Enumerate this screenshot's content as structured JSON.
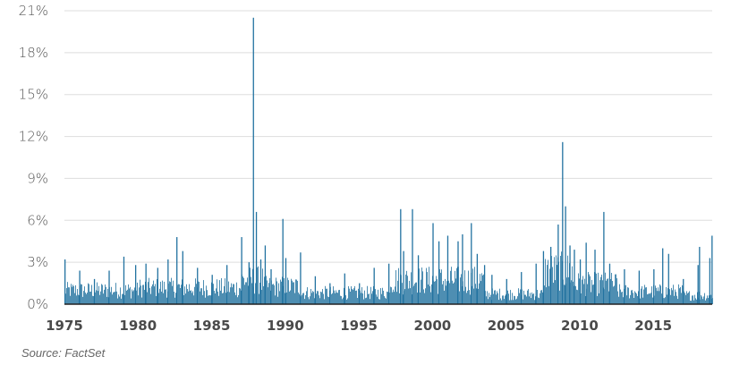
{
  "chart_data": {
    "type": "bar",
    "ylim": [
      0,
      21
    ],
    "xlim": [
      1975,
      2019
    ],
    "y_ticks": [
      "0%",
      "3%",
      "6%",
      "9%",
      "12%",
      "15%",
      "18%",
      "21%"
    ],
    "y_tick_values": [
      0,
      3,
      6,
      9,
      12,
      15,
      18,
      21
    ],
    "x_ticks": [
      "1975",
      "1980",
      "1985",
      "1990",
      "1995",
      "2000",
      "2005",
      "2010",
      "2015"
    ],
    "x_tick_values": [
      1975,
      1980,
      1985,
      1990,
      1995,
      2000,
      2005,
      2010,
      2015
    ],
    "grid": true,
    "bar_color": "#2272a0",
    "gridline_color": "#dddddd",
    "baseline_color": "#222222",
    "series": [
      {
        "x": [
          1975.0,
          1976.0,
          1977.0,
          1978.0,
          1979.0,
          1979.8,
          1980.5,
          1981.3,
          1982.0,
          1982.6,
          1983.0,
          1984.0,
          1985.0,
          1986.0,
          1987.0,
          1987.5,
          1987.8,
          1988.0,
          1988.3,
          1988.6,
          1989.0,
          1989.8,
          1990.0,
          1991.0,
          1992.0,
          1993.0,
          1994.0,
          1995.0,
          1996.0,
          1997.0,
          1997.8,
          1998.0,
          1998.6,
          1999.0,
          2000.0,
          2000.4,
          2001.0,
          2001.7,
          2002.0,
          2002.6,
          2003.0,
          2003.5,
          2004.0,
          2005.0,
          2006.0,
          2007.0,
          2007.5,
          2008.0,
          2008.5,
          2008.8,
          2009.0,
          2009.3,
          2009.6,
          2010.0,
          2010.4,
          2011.0,
          2011.6,
          2012.0,
          2013.0,
          2014.0,
          2015.0,
          2015.6,
          2016.0,
          2017.0,
          2018.0,
          2018.1,
          2018.8,
          2018.95
        ],
        "values": [
          3.2,
          2.4,
          1.8,
          2.4,
          3.4,
          2.8,
          2.9,
          2.6,
          3.2,
          4.8,
          3.8,
          2.6,
          2.1,
          2.8,
          4.8,
          3.0,
          20.5,
          6.6,
          3.2,
          4.2,
          2.5,
          6.1,
          3.3,
          3.7,
          2.0,
          1.5,
          2.2,
          1.5,
          2.6,
          2.9,
          6.8,
          3.8,
          6.8,
          3.5,
          5.8,
          4.5,
          4.9,
          4.5,
          5.0,
          5.8,
          3.6,
          2.8,
          2.1,
          1.8,
          2.3,
          2.9,
          3.8,
          4.1,
          5.7,
          11.6,
          7.0,
          4.2,
          3.9,
          3.2,
          4.4,
          3.9,
          6.6,
          2.9,
          2.5,
          2.4,
          2.5,
          4.0,
          3.6,
          1.8,
          2.8,
          4.1,
          3.3,
          4.9
        ]
      }
    ]
  },
  "source": "Source: FactSet"
}
